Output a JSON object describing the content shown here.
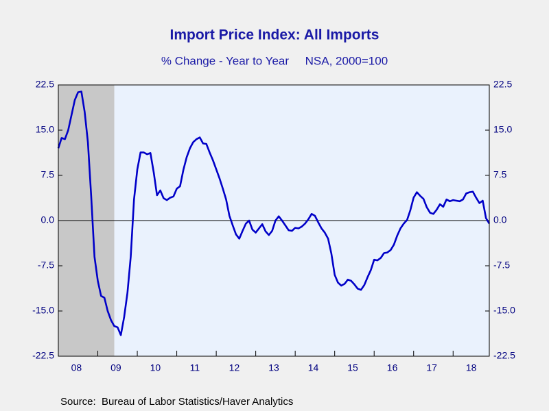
{
  "chart_data": {
    "type": "line",
    "title": "Import Price Index: All Imports",
    "subtitle": "% Change - Year to Year     NSA, 2000=100",
    "source": "Source:  Bureau of Labor Statistics/Haver Analytics",
    "categories": [
      null,
      null,
      null,
      null,
      null,
      null,
      "08",
      null,
      null,
      null,
      null,
      null,
      null,
      null,
      null,
      null,
      null,
      null,
      "09",
      null,
      null,
      null,
      null,
      null,
      null,
      null,
      null,
      null,
      null,
      null,
      "10",
      null,
      null,
      null,
      null,
      null,
      null,
      null,
      null,
      null,
      null,
      null,
      "11",
      null,
      null,
      null,
      null,
      null,
      null,
      null,
      null,
      null,
      null,
      null,
      "12",
      null,
      null,
      null,
      null,
      null,
      null,
      null,
      null,
      null,
      null,
      null,
      "13",
      null,
      null,
      null,
      null,
      null,
      null,
      null,
      null,
      null,
      null,
      null,
      "14",
      null,
      null,
      null,
      null,
      null,
      null,
      null,
      null,
      null,
      null,
      null,
      "15",
      null,
      null,
      null,
      null,
      null,
      null,
      null,
      null,
      null,
      null,
      null,
      "16",
      null,
      null,
      null,
      null,
      null,
      null,
      null,
      null,
      null,
      null,
      null,
      "17",
      null,
      null,
      null,
      null,
      null,
      null,
      null,
      null,
      null,
      null,
      null,
      "18",
      null,
      null,
      null,
      null,
      null
    ],
    "series": [
      {
        "name": "Import Price Index: All Imports",
        "color": "#0000c8",
        "values": [
          12,
          13.7,
          13.5,
          15,
          17.5,
          20,
          21.3,
          21.4,
          18,
          13,
          4,
          -6,
          -10,
          -12.5,
          -12.8,
          -15,
          -16.5,
          -17.5,
          -17.7,
          -19,
          -16,
          -12,
          -6,
          3.5,
          8.5,
          11.3,
          11.3,
          11,
          11.2,
          8,
          4.2,
          5,
          3.7,
          3.4,
          3.8,
          4,
          5.3,
          5.7,
          8.4,
          10.5,
          12,
          13,
          13.5,
          13.8,
          12.8,
          12.7,
          11.3,
          10,
          8.5,
          7,
          5.3,
          3.5,
          0.8,
          -0.8,
          -2.3,
          -3,
          -1.7,
          -0.5,
          0,
          -1.5,
          -2,
          -1.3,
          -0.6,
          -1.8,
          -2.4,
          -1.7,
          0,
          0.7,
          0,
          -0.8,
          -1.6,
          -1.7,
          -1.2,
          -1.3,
          -1,
          -0.5,
          0.2,
          1.1,
          0.8,
          -0.3,
          -1.3,
          -2,
          -3,
          -5.5,
          -9,
          -10.3,
          -10.8,
          -10.5,
          -9.8,
          -10,
          -10.6,
          -11.3,
          -11.5,
          -10.7,
          -9.4,
          -8.2,
          -6.5,
          -6.6,
          -6.2,
          -5.4,
          -5.3,
          -4.9,
          -4,
          -2.5,
          -1.3,
          -0.5,
          0.1,
          1.7,
          3.8,
          4.7,
          4.1,
          3.6,
          2.2,
          1.3,
          1.1,
          1.8,
          2.7,
          2.3,
          3.5,
          3.2,
          3.4,
          3.3,
          3.2,
          3.5,
          4.5,
          4.7,
          4.8,
          3.8,
          2.9,
          3.3,
          0.4,
          -0.5
        ]
      }
    ],
    "recession": {
      "from": 0,
      "to": 17
    },
    "ylim": [
      -22.5,
      22.5
    ],
    "yticks": [
      -22.5,
      {
        "value": -15,
        "label": "-15.0"
      },
      -7.5,
      {
        "value": 0,
        "label": "0.0"
      },
      7.5,
      {
        "value": 15,
        "label": "15.0"
      },
      22.5
    ],
    "y2lim": [
      -22.5,
      22.5
    ],
    "y2ticks": [
      -22.5,
      {
        "value": -15,
        "label": "-15.0"
      },
      -7.5,
      {
        "value": 0,
        "label": "0.0"
      },
      7.5,
      {
        "value": 15,
        "label": "15.0"
      },
      22.5
    ]
  }
}
